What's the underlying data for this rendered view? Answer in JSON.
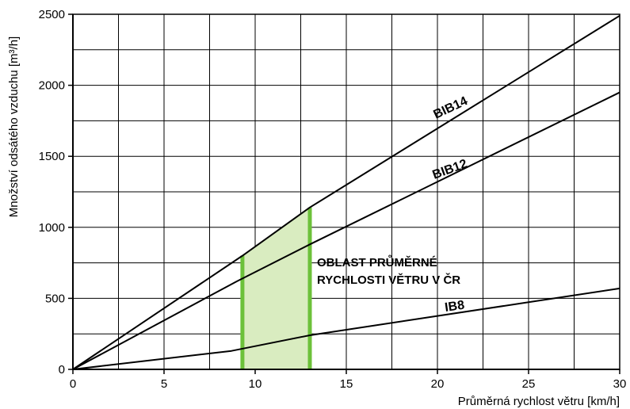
{
  "chart_data": {
    "type": "line",
    "title": "",
    "xlabel": "Průměrná rychlost větru [km/h]",
    "ylabel": "Množství odsátého vzduchu [m³/h]",
    "xlim": [
      0,
      30
    ],
    "ylim": [
      0,
      2500
    ],
    "x_ticks": [
      0,
      5,
      10,
      15,
      20,
      25,
      30
    ],
    "y_ticks": [
      0,
      500,
      1000,
      1500,
      2000,
      2500
    ],
    "x_tick_labels": [
      "0",
      "5",
      "10",
      "15",
      "20",
      "25",
      "30"
    ],
    "y_tick_labels": [
      "0",
      "500",
      "1000",
      "1500",
      "2000",
      "2500"
    ],
    "grid": true,
    "grid_x_step": 2.5,
    "grid_y_step": 250,
    "series": [
      {
        "name": "BIB14",
        "points": [
          [
            0,
            0
          ],
          [
            9.3,
            800
          ],
          [
            13,
            1140
          ],
          [
            30,
            2490
          ]
        ]
      },
      {
        "name": "BIB12",
        "points": [
          [
            0,
            0
          ],
          [
            9,
            620
          ],
          [
            13,
            880
          ],
          [
            30,
            1950
          ]
        ]
      },
      {
        "name": "IB8",
        "points": [
          [
            0,
            0
          ],
          [
            8.7,
            130
          ],
          [
            13,
            240
          ],
          [
            30,
            570
          ]
        ]
      }
    ],
    "highlight_region": {
      "x_range": [
        9.3,
        13
      ],
      "label_line1": "OBLAST PRŮMĚRNÉ",
      "label_line2": "RYCHLOSTI VĚTRU V ČR",
      "fill_color": "#d9ecc0",
      "edge_color": "#6cc13a"
    },
    "line_color": "#000000"
  }
}
